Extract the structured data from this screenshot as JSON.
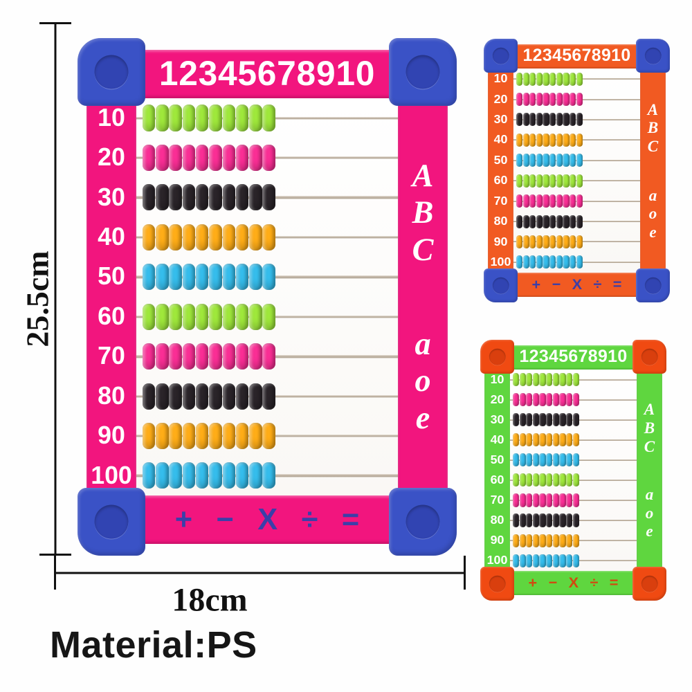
{
  "shared": {
    "header_numbers": "12345678910",
    "row_labels": [
      "10",
      "20",
      "30",
      "40",
      "50",
      "60",
      "70",
      "80",
      "90",
      "100"
    ],
    "letters_upper": [
      "A",
      "B",
      "C"
    ],
    "letters_lower": [
      "a",
      "o",
      "e"
    ],
    "operators": [
      "+",
      "−",
      "X",
      "÷",
      "="
    ],
    "beads_per_row": 10,
    "bead_colors": {
      "green": "#9fe83b",
      "pink": "#fa2e95",
      "black": "#2a2429",
      "orange": "#ffad17",
      "blue": "#35bdec"
    },
    "bead_row_sequence": [
      "green",
      "pink",
      "black",
      "orange",
      "blue",
      "green",
      "pink",
      "black",
      "orange",
      "blue"
    ],
    "rod_color": "#b0a393"
  },
  "products": [
    {
      "id": "pink-large",
      "variant": "large pink frame with blue corners",
      "colors": {
        "frame": "#f2157e",
        "corner": "#3a52c6",
        "stud": "#3144b2",
        "operators": "#3b3fa8",
        "text": "#ffffff"
      }
    },
    {
      "id": "orange-small",
      "variant": "small orange frame with blue corners",
      "colors": {
        "frame": "#f15a22",
        "corner": "#3a52c6",
        "stud": "#3144b2",
        "operators": "#3b3fa8",
        "text": "#ffffff"
      }
    },
    {
      "id": "green-small",
      "variant": "small green frame with orange corners",
      "colors": {
        "frame": "#5fd63f",
        "corner": "#f04a12",
        "stud": "#d93f0e",
        "operators": "#d14a10",
        "text": "#ffffff"
      }
    }
  ],
  "annotations": {
    "height_label": "25.5cm",
    "width_label": "18cm",
    "material_label": "Material:PS",
    "line_color": "#000000"
  }
}
